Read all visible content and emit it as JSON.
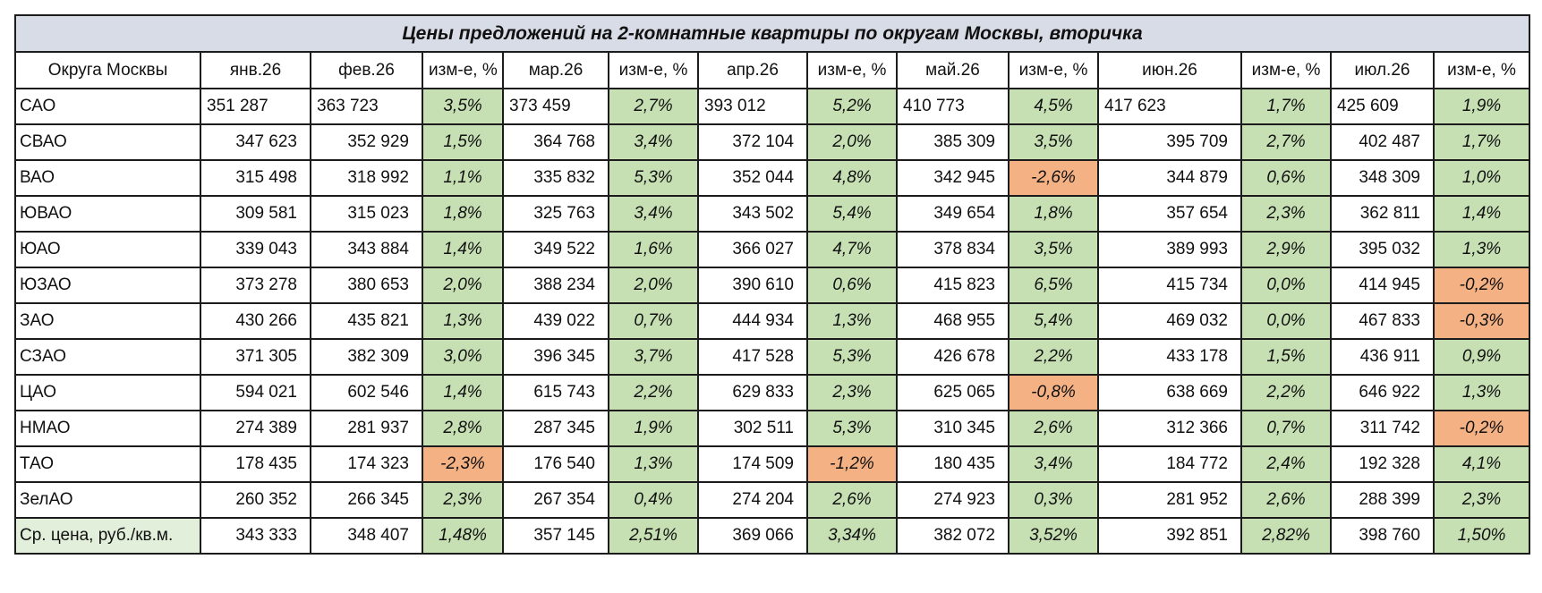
{
  "title": "Цены предложений на 2-комнатные квартиры по округам Москвы, вторичка",
  "headers": [
    "Округа Москвы",
    "янв.26",
    "фев.26",
    "изм-е, %",
    "мар.26",
    "изм-е, %",
    "апр.26",
    "изм-е, %",
    "май.26",
    "изм-е, %",
    "июн.26",
    "изм-е, %",
    "июл.26",
    "изм-е, %"
  ],
  "rows": [
    {
      "district": "САО",
      "cells": [
        "351 287",
        "363 723",
        "3,5%",
        "373 459",
        "2,7%",
        "393 012",
        "5,2%",
        "410 773",
        "4,5%",
        "417 623",
        "1,7%",
        "425 609",
        "1,9%"
      ]
    },
    {
      "district": "СВАО",
      "cells": [
        "347 623",
        "352 929",
        "1,5%",
        "364 768",
        "3,4%",
        "372 104",
        "2,0%",
        "385 309",
        "3,5%",
        "395 709",
        "2,7%",
        "402 487",
        "1,7%"
      ]
    },
    {
      "district": "ВАО",
      "cells": [
        "315 498",
        "318 992",
        "1,1%",
        "335 832",
        "5,3%",
        "352 044",
        "4,8%",
        "342 945",
        "-2,6%",
        "344 879",
        "0,6%",
        "348 309",
        "1,0%"
      ]
    },
    {
      "district": "ЮВАО",
      "cells": [
        "309 581",
        "315 023",
        "1,8%",
        "325 763",
        "3,4%",
        "343 502",
        "5,4%",
        "349 654",
        "1,8%",
        "357 654",
        "2,3%",
        "362 811",
        "1,4%"
      ]
    },
    {
      "district": "ЮАО",
      "cells": [
        "339 043",
        "343 884",
        "1,4%",
        "349 522",
        "1,6%",
        "366 027",
        "4,7%",
        "378 834",
        "3,5%",
        "389 993",
        "2,9%",
        "395 032",
        "1,3%"
      ]
    },
    {
      "district": "ЮЗАО",
      "cells": [
        "373 278",
        "380 653",
        "2,0%",
        "388 234",
        "2,0%",
        "390 610",
        "0,6%",
        "415 823",
        "6,5%",
        "415 734",
        "0,0%",
        "414 945",
        "-0,2%"
      ]
    },
    {
      "district": "ЗАО",
      "cells": [
        "430 266",
        "435 821",
        "1,3%",
        "439 022",
        "0,7%",
        "444 934",
        "1,3%",
        "468 955",
        "5,4%",
        "469 032",
        "0,0%",
        "467 833",
        "-0,3%"
      ]
    },
    {
      "district": "СЗАО",
      "cells": [
        "371 305",
        "382 309",
        "3,0%",
        "396 345",
        "3,7%",
        "417 528",
        "5,3%",
        "426 678",
        "2,2%",
        "433 178",
        "1,5%",
        "436 911",
        "0,9%"
      ]
    },
    {
      "district": "ЦАО",
      "cells": [
        "594 021",
        "602 546",
        "1,4%",
        "615 743",
        "2,2%",
        "629 833",
        "2,3%",
        "625 065",
        "-0,8%",
        "638 669",
        "2,2%",
        "646 922",
        "1,3%"
      ]
    },
    {
      "district": "НМАО",
      "cells": [
        "274 389",
        "281 937",
        "2,8%",
        "287 345",
        "1,9%",
        "302 511",
        "5,3%",
        "310 345",
        "2,6%",
        "312 366",
        "0,7%",
        "311 742",
        "-0,2%"
      ]
    },
    {
      "district": "ТАО",
      "cells": [
        "178 435",
        "174 323",
        "-2,3%",
        "176 540",
        "1,3%",
        "174 509",
        "-1,2%",
        "180 435",
        "3,4%",
        "184 772",
        "2,4%",
        "192 328",
        "4,1%"
      ]
    },
    {
      "district": "ЗелАО",
      "cells": [
        "260 352",
        "266 345",
        "2,3%",
        "267 354",
        "0,4%",
        "274 204",
        "2,6%",
        "274 923",
        "0,3%",
        "281 952",
        "2,6%",
        "288 399",
        "2,3%"
      ]
    }
  ],
  "average": {
    "district": "Ср. цена, руб./кв.м.",
    "cells": [
      "343 333",
      "348 407",
      "1,48%",
      "357 145",
      "2,51%",
      "369 066",
      "3,34%",
      "382 072",
      "3,52%",
      "392 851",
      "2,82%",
      "398 760",
      "1,50%"
    ]
  },
  "colors": {
    "title_bg": "#d8dce6",
    "positive": "#c6e0b4",
    "negative": "#f4b183",
    "avg_label_bg": "#e2efda",
    "border": "#1c1c1c"
  }
}
